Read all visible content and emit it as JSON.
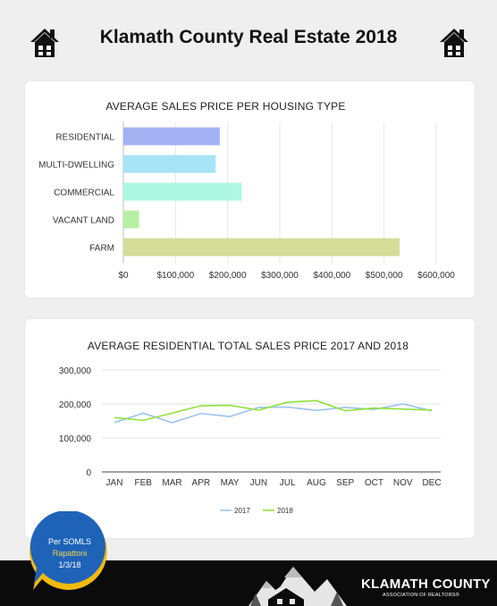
{
  "header": {
    "title": "Klamath County Real Estate 2018"
  },
  "colors": {
    "background": "#efefef",
    "card": "#ffffff",
    "footer": "#0b0b0b",
    "badge_blue": "#1f63b8",
    "badge_yellow": "#f2b90f"
  },
  "chart_data": [
    {
      "type": "bar",
      "orientation": "horizontal",
      "title": "AVERAGE SALES PRICE PER HOUSING TYPE",
      "categories": [
        "RESIDENTIAL",
        "MULTI-DWELLING",
        "COMMERCIAL",
        "VACANT LAND",
        "FARM"
      ],
      "values": [
        185000,
        177000,
        227000,
        30000,
        530000
      ],
      "colors": [
        "#a4b2f3",
        "#a8e3f8",
        "#adf7e1",
        "#b7f0a4",
        "#d5dc98"
      ],
      "xlim": [
        0,
        600000
      ],
      "xticks": [
        0,
        100000,
        200000,
        300000,
        400000,
        500000,
        600000
      ],
      "xtick_labels": [
        "$0",
        "$100,000",
        "$200,000",
        "$300,000",
        "$400,000",
        "$500,000",
        "$600,000"
      ],
      "grid": true,
      "xlabel": "",
      "ylabel": ""
    },
    {
      "type": "line",
      "title": "AVERAGE RESIDENTIAL TOTAL SALES PRICE 2017 AND 2018",
      "x": [
        "JAN",
        "FEB",
        "MAR",
        "APR",
        "MAY",
        "JUN",
        "JUL",
        "AUG",
        "SEP",
        "OCT",
        "NOV",
        "DEC"
      ],
      "series": [
        {
          "name": "2017",
          "color": "#9cc3f0",
          "values": [
            145000,
            173000,
            145000,
            172000,
            163000,
            190000,
            191000,
            181000,
            190000,
            184000,
            200000,
            180000
          ]
        },
        {
          "name": "2018",
          "color": "#8fe03c",
          "values": [
            160000,
            152000,
            173000,
            195000,
            196000,
            182000,
            205000,
            210000,
            180000,
            188000,
            185000,
            182000
          ]
        }
      ],
      "ylim": [
        0,
        300000
      ],
      "yticks": [
        0,
        100000,
        200000,
        300000
      ],
      "ytick_labels": [
        "0",
        "100,000",
        "200,000",
        "300,000"
      ],
      "grid": true,
      "legend": "bottom",
      "xlabel": "",
      "ylabel": ""
    }
  ],
  "badge": {
    "line1": "Per SOMLS",
    "line2": "Rapattoni",
    "line3": "1/3/18"
  },
  "footer": {
    "brand": "KLAMATH COUNTY",
    "subtitle": "ASSOCIATION OF REALTORS®"
  }
}
